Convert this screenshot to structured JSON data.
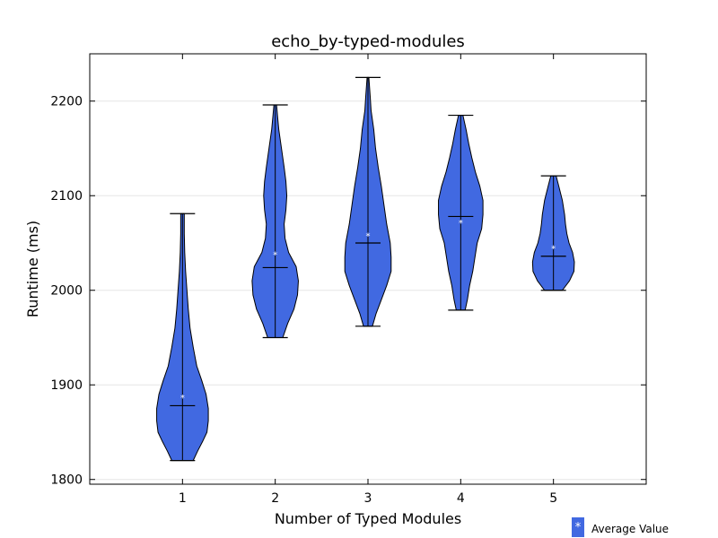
{
  "chart_data": {
    "type": "violin",
    "title": "echo_by-typed-modules",
    "xlabel": "Number of Typed Modules",
    "ylabel": "Runtime (ms)",
    "xlim": [
      0,
      6
    ],
    "ylim": [
      1795,
      2250
    ],
    "x_ticks": [
      1,
      2,
      3,
      4,
      5
    ],
    "y_ticks": [
      1800,
      1900,
      2000,
      2100,
      2200
    ],
    "grid": "horizontal",
    "legend": {
      "position": "bottom-right",
      "label": "Average Value",
      "marker": "*"
    },
    "colors": {
      "violin_fill": "#4169E1",
      "outline": "#000000",
      "grid": "#e6e6e6"
    },
    "violins": [
      {
        "x": 1,
        "min": 1820,
        "max": 2081,
        "median": 1878,
        "mean": 1887,
        "density": [
          [
            1820,
            0.24
          ],
          [
            1830,
            0.34
          ],
          [
            1840,
            0.45
          ],
          [
            1850,
            0.55
          ],
          [
            1862,
            0.58
          ],
          [
            1875,
            0.58
          ],
          [
            1890,
            0.53
          ],
          [
            1905,
            0.43
          ],
          [
            1920,
            0.32
          ],
          [
            1940,
            0.24
          ],
          [
            1960,
            0.17
          ],
          [
            1980,
            0.13
          ],
          [
            2000,
            0.1
          ],
          [
            2020,
            0.07
          ],
          [
            2040,
            0.05
          ],
          [
            2060,
            0.04
          ],
          [
            2081,
            0.04
          ]
        ]
      },
      {
        "x": 2,
        "min": 1950,
        "max": 2196,
        "median": 2024,
        "mean": 2038,
        "density": [
          [
            1950,
            0.17
          ],
          [
            1965,
            0.28
          ],
          [
            1980,
            0.42
          ],
          [
            1995,
            0.5
          ],
          [
            2010,
            0.52
          ],
          [
            2025,
            0.47
          ],
          [
            2040,
            0.3
          ],
          [
            2055,
            0.22
          ],
          [
            2070,
            0.2
          ],
          [
            2085,
            0.24
          ],
          [
            2100,
            0.26
          ],
          [
            2115,
            0.24
          ],
          [
            2130,
            0.2
          ],
          [
            2150,
            0.14
          ],
          [
            2170,
            0.08
          ],
          [
            2185,
            0.05
          ],
          [
            2196,
            0.03
          ]
        ]
      },
      {
        "x": 3,
        "min": 1962,
        "max": 2225,
        "median": 2050,
        "mean": 2058,
        "density": [
          [
            1962,
            0.1
          ],
          [
            1975,
            0.18
          ],
          [
            1990,
            0.3
          ],
          [
            2005,
            0.42
          ],
          [
            2020,
            0.52
          ],
          [
            2035,
            0.52
          ],
          [
            2050,
            0.5
          ],
          [
            2070,
            0.42
          ],
          [
            2090,
            0.36
          ],
          [
            2110,
            0.3
          ],
          [
            2130,
            0.23
          ],
          [
            2150,
            0.17
          ],
          [
            2170,
            0.13
          ],
          [
            2190,
            0.07
          ],
          [
            2205,
            0.05
          ],
          [
            2225,
            0.02
          ]
        ]
      },
      {
        "x": 4,
        "min": 1979,
        "max": 2185,
        "median": 2078,
        "mean": 2072,
        "density": [
          [
            1979,
            0.1
          ],
          [
            1990,
            0.15
          ],
          [
            2005,
            0.2
          ],
          [
            2020,
            0.27
          ],
          [
            2035,
            0.32
          ],
          [
            2050,
            0.37
          ],
          [
            2065,
            0.47
          ],
          [
            2080,
            0.5
          ],
          [
            2095,
            0.5
          ],
          [
            2110,
            0.43
          ],
          [
            2125,
            0.33
          ],
          [
            2140,
            0.25
          ],
          [
            2155,
            0.18
          ],
          [
            2170,
            0.12
          ],
          [
            2185,
            0.05
          ]
        ]
      },
      {
        "x": 5,
        "min": 2000,
        "max": 2121,
        "median": 2036,
        "mean": 2045,
        "density": [
          [
            2000,
            0.2
          ],
          [
            2010,
            0.36
          ],
          [
            2020,
            0.46
          ],
          [
            2030,
            0.47
          ],
          [
            2040,
            0.43
          ],
          [
            2050,
            0.35
          ],
          [
            2060,
            0.3
          ],
          [
            2070,
            0.27
          ],
          [
            2080,
            0.25
          ],
          [
            2095,
            0.2
          ],
          [
            2110,
            0.12
          ],
          [
            2121,
            0.06
          ]
        ]
      }
    ]
  }
}
